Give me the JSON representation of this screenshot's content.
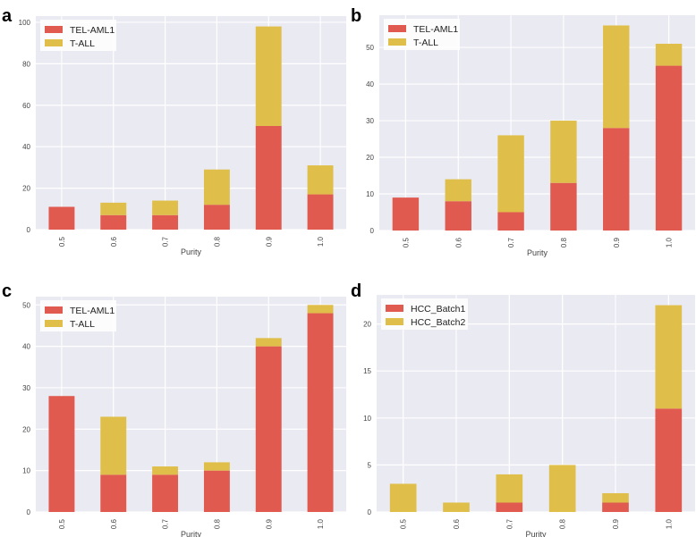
{
  "colors": {
    "series1": "#e05a4f",
    "series2": "#dfbf4a",
    "plot_bg": "#eaeaf2",
    "grid": "#ffffff"
  },
  "chart_data": [
    {
      "type": "bar",
      "stacked": true,
      "panel": "a",
      "xlabel": "Purity",
      "ylabel": "",
      "categories": [
        "0.5",
        "0.6",
        "0.7",
        "0.8",
        "0.9",
        "1.0"
      ],
      "series": [
        {
          "name": "TEL-AML1",
          "values": [
            11,
            7,
            7,
            12,
            50,
            17
          ]
        },
        {
          "name": "T-ALL",
          "values": [
            0,
            6,
            7,
            17,
            48,
            14
          ]
        }
      ],
      "ylim": [
        0,
        103
      ],
      "yticks": [
        0,
        20,
        40,
        60,
        80,
        100
      ],
      "grid": true,
      "legend": "top-left"
    },
    {
      "type": "bar",
      "stacked": true,
      "panel": "b",
      "xlabel": "Purity",
      "ylabel": "",
      "categories": [
        "0.5",
        "0.6",
        "0.7",
        "0.8",
        "0.9",
        "1.0"
      ],
      "series": [
        {
          "name": "TEL-AML1",
          "values": [
            9,
            8,
            5,
            13,
            28,
            45
          ]
        },
        {
          "name": "T-ALL",
          "values": [
            0,
            6,
            21,
            17,
            28,
            6
          ]
        }
      ],
      "ylim": [
        0,
        58.8
      ],
      "yticks": [
        0,
        10,
        20,
        30,
        40,
        50
      ],
      "grid": true,
      "legend": "top-left"
    },
    {
      "type": "bar",
      "stacked": true,
      "panel": "c",
      "xlabel": "Purity",
      "ylabel": "",
      "categories": [
        "0.5",
        "0.6",
        "0.7",
        "0.8",
        "0.9",
        "1.0"
      ],
      "series": [
        {
          "name": "TEL-AML1",
          "values": [
            28,
            9,
            9,
            10,
            40,
            48
          ]
        },
        {
          "name": "T-ALL",
          "values": [
            0,
            14,
            2,
            2,
            2,
            2
          ]
        }
      ],
      "ylim": [
        0,
        52
      ],
      "yticks": [
        0,
        10,
        20,
        30,
        40,
        50
      ],
      "grid": true,
      "legend": "top-left"
    },
    {
      "type": "bar",
      "stacked": true,
      "panel": "d",
      "xlabel": "Purity",
      "ylabel": "",
      "categories": [
        "0.5",
        "0.6",
        "0.7",
        "0.8",
        "0.9",
        "1.0"
      ],
      "series": [
        {
          "name": "HCC_Batch1",
          "values": [
            0,
            0,
            1,
            0,
            1,
            11
          ]
        },
        {
          "name": "HCC_Batch2",
          "values": [
            3,
            1,
            3,
            5,
            1,
            11
          ]
        }
      ],
      "ylim": [
        0,
        23.1
      ],
      "yticks": [
        0,
        5,
        10,
        15,
        20
      ],
      "grid": true,
      "legend": "top-left"
    }
  ]
}
